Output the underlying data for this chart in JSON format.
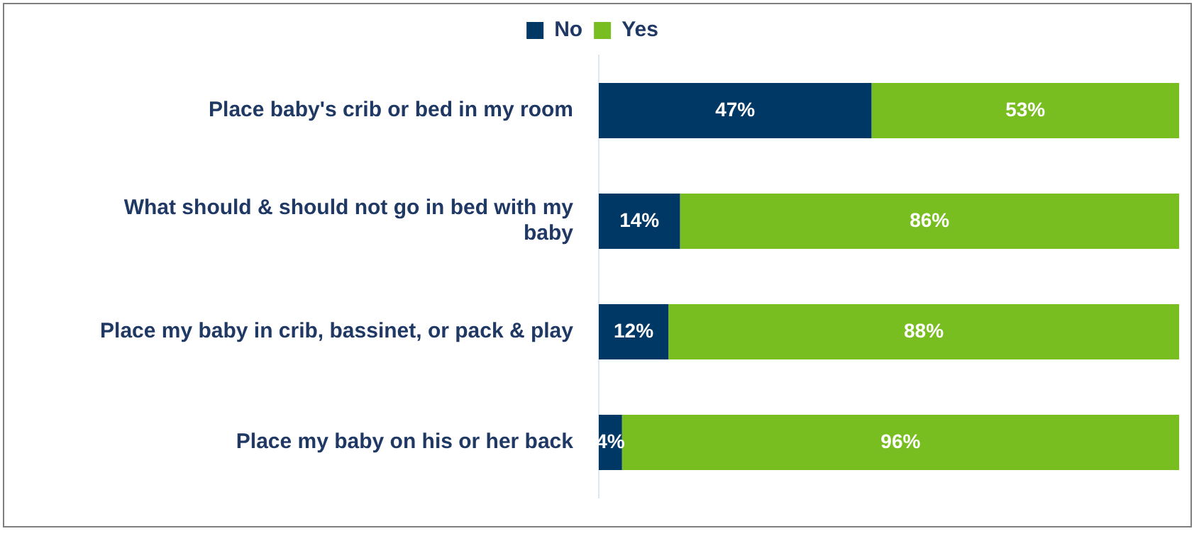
{
  "chart_data": {
    "type": "bar",
    "orientation": "horizontal",
    "stacked": true,
    "legend": "top",
    "tick_labels": "y",
    "grid": false,
    "xlim": [
      0,
      100
    ],
    "categories": [
      "Place baby's crib or bed in my room",
      "What should & should not go in bed with my baby",
      "Place my baby in crib, bassinet, or pack & play",
      "Place my baby on his or her back"
    ],
    "series": [
      {
        "name": "No",
        "color": "#003865",
        "values": [
          47,
          14,
          12,
          4
        ],
        "value_labels": [
          "47%",
          "14%",
          "12%",
          "4%"
        ]
      },
      {
        "name": "Yes",
        "color": "#78be20",
        "values": [
          53,
          86,
          88,
          96
        ],
        "value_labels": [
          "53%",
          "86%",
          "88%",
          "96%"
        ]
      }
    ]
  }
}
